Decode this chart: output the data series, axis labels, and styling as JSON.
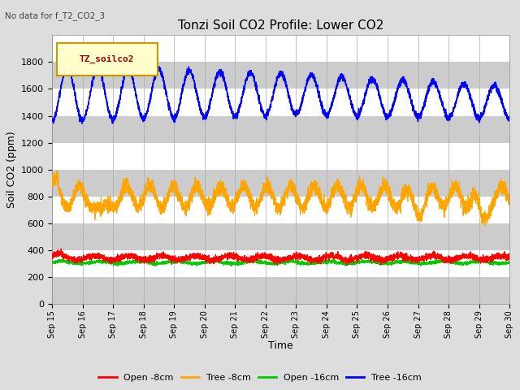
{
  "title": "Tonzi Soil CO2 Profile: Lower CO2",
  "subtitle": "No data for f_T2_CO2_3",
  "ylabel": "Soil CO2 (ppm)",
  "xlabel": "Time",
  "legend_label": "TZ_soilco2",
  "ylim": [
    0,
    2000
  ],
  "yticks": [
    0,
    200,
    400,
    600,
    800,
    1000,
    1200,
    1400,
    1600,
    1800
  ],
  "xtick_labels": [
    "Sep 15",
    "Sep 16",
    "Sep 17",
    "Sep 18",
    "Sep 19",
    "Sep 20",
    "Sep 21",
    "Sep 22",
    "Sep 23",
    "Sep 24",
    "Sep 25",
    "Sep 26",
    "Sep 27",
    "Sep 28",
    "Sep 29",
    "Sep 30"
  ],
  "series_labels": [
    "Open -8cm",
    "Tree -8cm",
    "Open -16cm",
    "Tree -16cm"
  ],
  "series_colors": [
    "#ff0000",
    "#ffa500",
    "#00cc00",
    "#0000ff"
  ],
  "title_fontsize": 11,
  "axis_label_fontsize": 9,
  "tick_fontsize": 8
}
